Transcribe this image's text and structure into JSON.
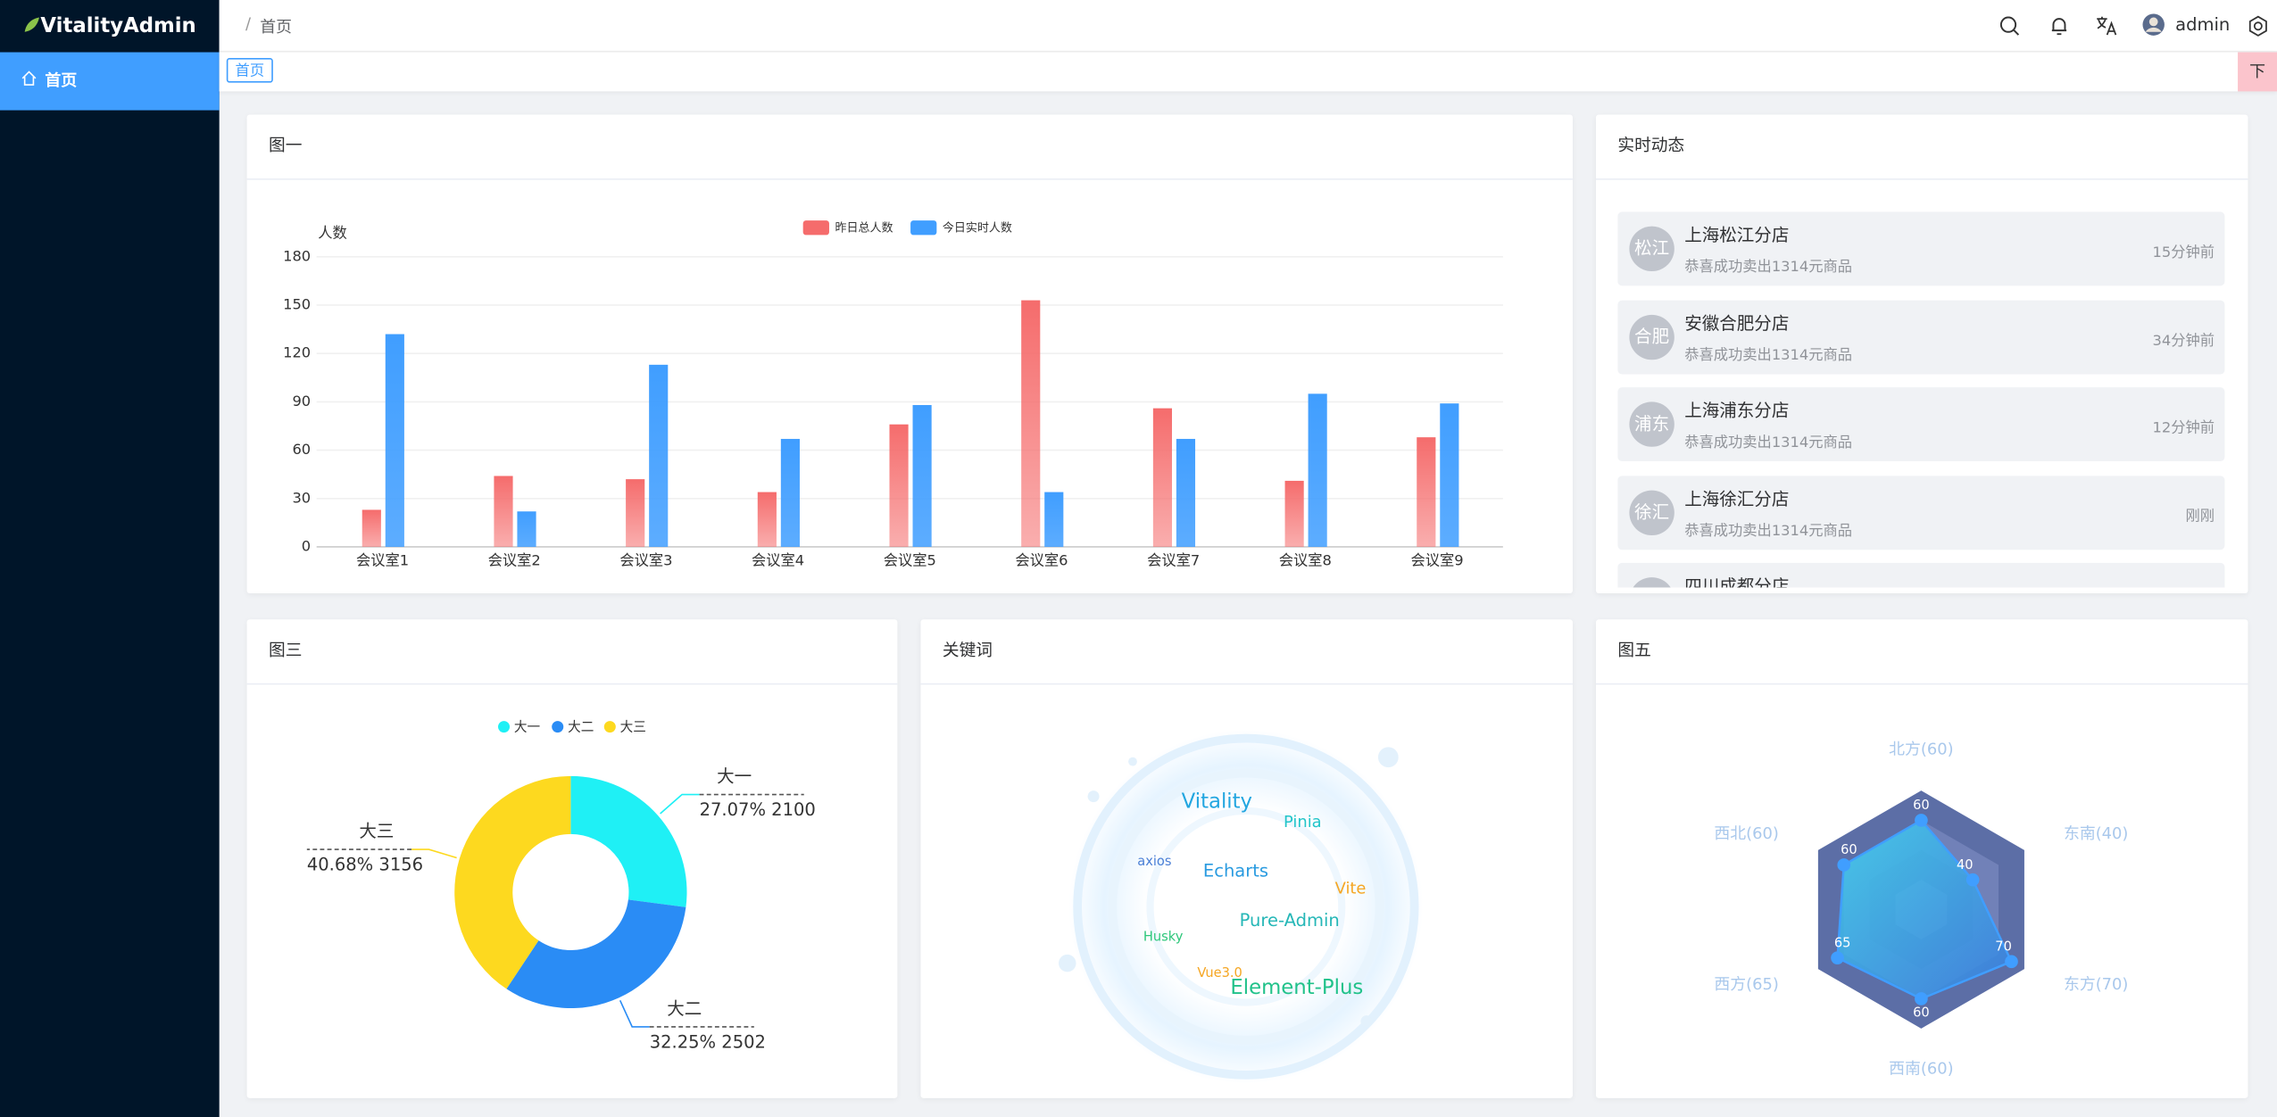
{
  "brand": "VitalityAdmin",
  "sidebar": {
    "items": [
      "首页"
    ]
  },
  "header": {
    "breadcrumb": "首页",
    "user": "admin"
  },
  "tabs": {
    "items": [
      "首页"
    ],
    "button": "下"
  },
  "chart_data": [
    {
      "type": "bar",
      "title": "图一",
      "y_label": "人数",
      "categories": [
        "会议室1",
        "会议室2",
        "会议室3",
        "会议室4",
        "会议室5",
        "会议室6",
        "会议室7",
        "会议室8",
        "会议室9"
      ],
      "series": [
        {
          "name": "昨日总人数",
          "color": "#f56c6c",
          "values": [
            23,
            44,
            42,
            34,
            76,
            153,
            86,
            41,
            68
          ]
        },
        {
          "name": "今日实时人数",
          "color": "#409eff",
          "values": [
            132,
            22,
            113,
            67,
            88,
            34,
            67,
            95,
            89
          ]
        }
      ],
      "ylim": [
        0,
        180
      ],
      "yticks": [
        0,
        30,
        60,
        90,
        120,
        150,
        180
      ],
      "grid": true,
      "legend": "top"
    },
    {
      "type": "pie",
      "title": "图三",
      "categories": [
        "大一",
        "大二",
        "大三"
      ],
      "values": [
        2100,
        2502,
        3156
      ],
      "value_labels": [
        "27.07% 2100",
        "32.25% 2502",
        "40.68% 3156"
      ],
      "colors": [
        "#1ff0f5",
        "#2a8cf5",
        "#fdd91f"
      ],
      "legend": "top"
    },
    {
      "type": "radar",
      "title": "图五",
      "indicators": [
        "北方(60)",
        "东南(40)",
        "东方(70)",
        "西南(60)",
        "西方(65)",
        "西北(60)"
      ],
      "values": [
        60,
        40,
        70,
        60,
        65,
        60
      ],
      "rlim": [
        0,
        80
      ],
      "color": "#409eff"
    }
  ],
  "keywords": {
    "title": "关键词",
    "words": [
      {
        "text": "Vitality",
        "color": "#22a6e0"
      },
      {
        "text": "Pinia",
        "color": "#22c5c9"
      },
      {
        "text": "axios",
        "color": "#4a7fd6"
      },
      {
        "text": "Echarts",
        "color": "#2a9be0"
      },
      {
        "text": "Vite",
        "color": "#f5a623"
      },
      {
        "text": "Pure-Admin",
        "color": "#25b7b7"
      },
      {
        "text": "Husky",
        "color": "#2ec77b"
      },
      {
        "text": "Vue3.0",
        "color": "#f5a623"
      },
      {
        "text": "Element-Plus",
        "color": "#21c28a"
      }
    ]
  },
  "activity": {
    "title": "实时动态",
    "items": [
      {
        "avatar": "松江",
        "name": "上海松江分店",
        "desc": "恭喜成功卖出1314元商品",
        "time": "15分钟前"
      },
      {
        "avatar": "合肥",
        "name": "安徽合肥分店",
        "desc": "恭喜成功卖出1314元商品",
        "time": "34分钟前"
      },
      {
        "avatar": "浦东",
        "name": "上海浦东分店",
        "desc": "恭喜成功卖出1314元商品",
        "time": "12分钟前"
      },
      {
        "avatar": "徐汇",
        "name": "上海徐汇分店",
        "desc": "恭喜成功卖出1314元商品",
        "time": "刚刚"
      },
      {
        "name": "四川成都分店"
      }
    ]
  }
}
